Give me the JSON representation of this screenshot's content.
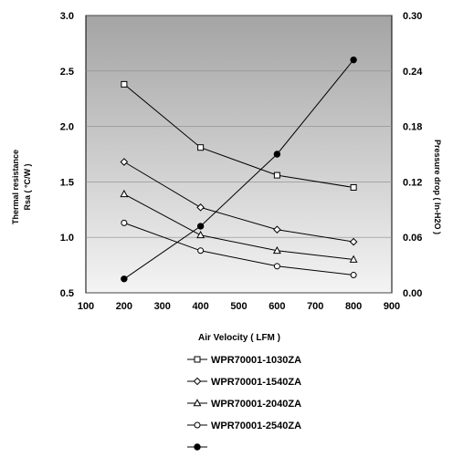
{
  "chart_data": {
    "type": "line",
    "xlabel": "Air Velocity ( LFM )",
    "ylabel_left": [
      "Thermal resistance",
      "Rsa ( °C/W )"
    ],
    "ylabel_right": "Pressure drop ( In-H2O )",
    "xlim": [
      100,
      900
    ],
    "ylim_left": [
      0.5,
      3.0
    ],
    "ylim_right": [
      0.0,
      0.3
    ],
    "x_ticks": [
      "100",
      "200",
      "300",
      "400",
      "500",
      "600",
      "700",
      "800",
      "900"
    ],
    "y_left_ticks": [
      "0.5",
      "1.0",
      "1.5",
      "2.0",
      "2.5",
      "3.0"
    ],
    "y_right_ticks": [
      "0.00",
      "0.06",
      "0.12",
      "0.18",
      "0.24",
      "0.30"
    ],
    "grid": false,
    "background": "gradient-gray",
    "legend_position": "bottom",
    "x": [
      200,
      400,
      600,
      800
    ],
    "series": [
      {
        "name": "WPR70001-1030ZA",
        "marker": "square",
        "axis": "left",
        "values": [
          2.38,
          1.81,
          1.56,
          1.45
        ]
      },
      {
        "name": "WPR70001-1540ZA",
        "marker": "diamond",
        "axis": "left",
        "values": [
          1.68,
          1.27,
          1.07,
          0.96
        ]
      },
      {
        "name": "WPR70001-2040ZA",
        "marker": "triangle",
        "axis": "left",
        "values": [
          1.39,
          1.02,
          0.88,
          0.8
        ]
      },
      {
        "name": "WPR70001-2540ZA",
        "marker": "circle",
        "axis": "left",
        "values": [
          1.13,
          0.88,
          0.74,
          0.66
        ]
      },
      {
        "name": "",
        "marker": "filled-circle",
        "axis": "right",
        "values": [
          0.015,
          0.072,
          0.15,
          0.252
        ]
      }
    ]
  }
}
